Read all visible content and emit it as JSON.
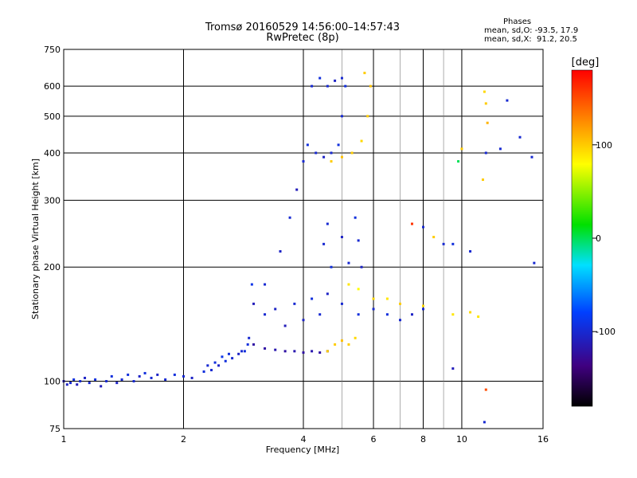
{
  "header": {
    "title_line1": "Tromsø 20160529 14:56:00–14:57:43",
    "title_line2": "RwPretec (8p)"
  },
  "phases": {
    "heading": "Phases",
    "line_o": "mean, sd,O: -93.5, 17.9",
    "line_x": "mean, sd,X:  91.2, 20.5"
  },
  "chart_data": {
    "type": "scatter",
    "xlabel": "Frequency [MHz]",
    "ylabel": "Stationary phase Virtual Height [km]",
    "xscale": "log",
    "yscale": "log",
    "xlim": [
      1,
      16
    ],
    "ylim": [
      75,
      750
    ],
    "xticks": [
      1,
      2,
      4,
      6,
      8,
      10,
      16
    ],
    "xticks_minor": [
      5,
      7,
      9
    ],
    "yticks": [
      75,
      100,
      200,
      300,
      400,
      500,
      600,
      750
    ],
    "grid": true,
    "colorbar": {
      "label": "[deg]",
      "range": [
        -180,
        180
      ],
      "ticks": [
        100,
        0,
        -100
      ],
      "colors": [
        "#ff0000",
        "#ff8000",
        "#ffff00",
        "#00e000",
        "#00e0ff",
        "#0040ff",
        "#400080",
        "#000000"
      ]
    },
    "series": [
      {
        "points": [
          [
            1.0,
            100,
            -110
          ],
          [
            1.02,
            98,
            -105
          ],
          [
            1.04,
            99,
            -100
          ],
          [
            1.06,
            101,
            -95
          ],
          [
            1.08,
            98,
            -110
          ],
          [
            1.1,
            100,
            -100
          ],
          [
            1.13,
            102,
            -105
          ],
          [
            1.16,
            99,
            -100
          ],
          [
            1.2,
            101,
            -95
          ],
          [
            1.24,
            97,
            -110
          ],
          [
            1.28,
            100,
            -100
          ],
          [
            1.32,
            103,
            -95
          ],
          [
            1.36,
            99,
            -105
          ],
          [
            1.4,
            101,
            -100
          ],
          [
            1.45,
            104,
            -95
          ],
          [
            1.5,
            100,
            -100
          ],
          [
            1.55,
            103,
            -105
          ],
          [
            1.6,
            105,
            -95
          ],
          [
            1.66,
            102,
            -100
          ],
          [
            1.72,
            104,
            -105
          ],
          [
            1.8,
            101,
            -100
          ],
          [
            1.9,
            104,
            -95
          ],
          [
            2.0,
            103,
            -100
          ],
          [
            2.1,
            102,
            -105
          ],
          [
            2.25,
            106,
            -95
          ],
          [
            2.35,
            107,
            -100
          ],
          [
            2.45,
            110,
            -105
          ],
          [
            2.55,
            113,
            -95
          ],
          [
            2.65,
            115,
            -100
          ],
          [
            2.75,
            118,
            -105
          ],
          [
            2.85,
            120,
            -95
          ],
          [
            2.92,
            130,
            -100
          ],
          [
            2.97,
            180,
            -90
          ]
        ]
      },
      {
        "points": [
          [
            2.3,
            110,
            -100
          ],
          [
            2.4,
            112,
            -95
          ],
          [
            2.5,
            116,
            -90
          ],
          [
            2.6,
            118,
            -95
          ],
          [
            2.8,
            120,
            -100
          ],
          [
            2.9,
            125,
            -95
          ]
        ]
      },
      {
        "points": [
          [
            3.0,
            125,
            -120
          ],
          [
            3.2,
            122,
            -120
          ],
          [
            3.4,
            121,
            -115
          ],
          [
            3.6,
            120,
            -120
          ],
          [
            3.8,
            120,
            -115
          ],
          [
            4.0,
            119,
            -120
          ],
          [
            4.2,
            120,
            -115
          ],
          [
            4.4,
            119,
            -120
          ],
          [
            4.6,
            120,
            -115
          ]
        ]
      },
      {
        "points": [
          [
            3.2,
            180,
            -100
          ],
          [
            3.5,
            220,
            -105
          ],
          [
            3.7,
            270,
            -100
          ],
          [
            3.85,
            320,
            -110
          ],
          [
            4.0,
            380,
            -100
          ],
          [
            4.1,
            420,
            -95
          ],
          [
            4.3,
            400,
            -100
          ],
          [
            4.5,
            390,
            -105
          ],
          [
            4.7,
            400,
            -100
          ],
          [
            4.9,
            420,
            -95
          ],
          [
            5.0,
            500,
            -100
          ],
          [
            5.1,
            600,
            -95
          ],
          [
            5.0,
            630,
            -100
          ],
          [
            4.8,
            620,
            -105
          ],
          [
            4.6,
            600,
            -100
          ],
          [
            4.4,
            630,
            -95
          ],
          [
            4.2,
            600,
            -100
          ]
        ]
      },
      {
        "points": [
          [
            3.0,
            160,
            -110
          ],
          [
            3.2,
            150,
            -100
          ],
          [
            3.4,
            155,
            -105
          ],
          [
            3.6,
            140,
            -110
          ],
          [
            3.8,
            160,
            -100
          ],
          [
            4.0,
            145,
            -105
          ],
          [
            4.2,
            165,
            -95
          ],
          [
            4.4,
            150,
            -100
          ],
          [
            4.6,
            170,
            -105
          ],
          [
            5.0,
            160,
            -100
          ],
          [
            5.5,
            150,
            -95
          ],
          [
            6.0,
            155,
            -100
          ],
          [
            6.5,
            150,
            -95
          ],
          [
            7.0,
            145,
            -100
          ],
          [
            7.5,
            150,
            -105
          ],
          [
            8.0,
            155,
            -100
          ]
        ]
      },
      {
        "points": [
          [
            4.5,
            230,
            -100
          ],
          [
            5.0,
            240,
            -105
          ],
          [
            5.5,
            235,
            -100
          ],
          [
            4.7,
            200,
            -95
          ],
          [
            5.2,
            205,
            -100
          ],
          [
            5.6,
            200,
            -105
          ],
          [
            4.6,
            260,
            -100
          ],
          [
            5.4,
            270,
            -95
          ]
        ]
      },
      {
        "points": [
          [
            4.6,
            120,
            100
          ],
          [
            4.8,
            125,
            100
          ],
          [
            5.0,
            128,
            105
          ],
          [
            5.2,
            125,
            100
          ],
          [
            5.4,
            130,
            95
          ],
          [
            4.7,
            380,
            100
          ],
          [
            5.0,
            390,
            105
          ],
          [
            5.3,
            400,
            100
          ],
          [
            5.6,
            430,
            95
          ],
          [
            5.8,
            500,
            100
          ],
          [
            5.9,
            600,
            105
          ],
          [
            5.7,
            650,
            100
          ]
        ]
      },
      {
        "points": [
          [
            5.2,
            180,
            90
          ],
          [
            5.5,
            175,
            80
          ],
          [
            6.0,
            165,
            95
          ],
          [
            6.5,
            165,
            90
          ],
          [
            7.0,
            160,
            100
          ],
          [
            8.0,
            158,
            95
          ],
          [
            9.5,
            150,
            90
          ],
          [
            10.5,
            152,
            95
          ],
          [
            11.0,
            148,
            90
          ]
        ]
      },
      {
        "points": [
          [
            7.5,
            260,
            160
          ],
          [
            8.0,
            255,
            -100
          ],
          [
            8.5,
            240,
            100
          ],
          [
            9.0,
            230,
            -100
          ],
          [
            9.5,
            230,
            -95
          ],
          [
            10.0,
            410,
            100
          ],
          [
            9.8,
            380,
            0
          ],
          [
            11.5,
            400,
            -100
          ],
          [
            11.3,
            340,
            100
          ],
          [
            11.4,
            580,
            95
          ],
          [
            11.5,
            540,
            100
          ],
          [
            11.6,
            480,
            110
          ],
          [
            12.5,
            410,
            -100
          ],
          [
            13.0,
            550,
            -100
          ],
          [
            14.0,
            440,
            -100
          ],
          [
            15.0,
            390,
            -100
          ],
          [
            15.2,
            205,
            -100
          ],
          [
            11.4,
            78,
            -100
          ],
          [
            11.5,
            95,
            150
          ],
          [
            9.5,
            108,
            -110
          ],
          [
            10.5,
            220,
            -100
          ]
        ]
      }
    ]
  }
}
